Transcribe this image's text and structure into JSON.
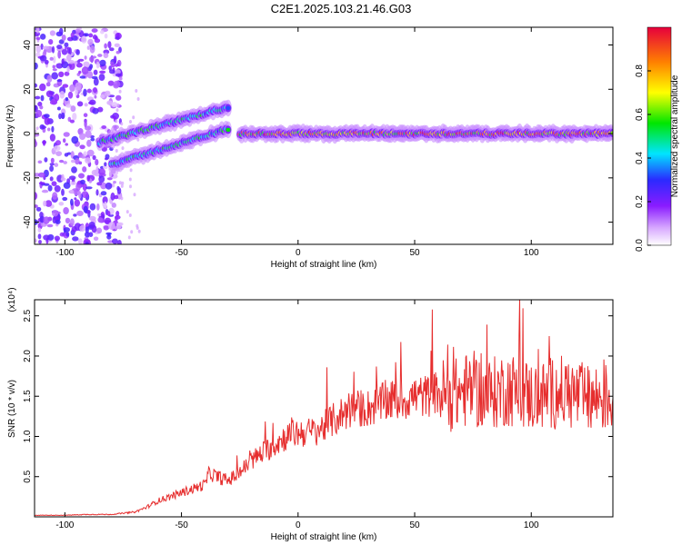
{
  "title": "C2E1.2025.103.21.46.G03",
  "colors": {
    "trace": "#e62e2e",
    "axis": "#000000"
  },
  "chart_data": [
    {
      "type": "heatmap",
      "xlabel": "Height of straight line (km)",
      "ylabel": "Frequency (Hz)",
      "xlim": [
        -113,
        135
      ],
      "ylim": [
        -50,
        48
      ],
      "xticks": [
        -100,
        -50,
        0,
        50,
        100
      ],
      "yticks": [
        -40,
        -20,
        0,
        20,
        40
      ],
      "colorbar": {
        "label": "Normalized spectral amplitude",
        "range": [
          0,
          1
        ],
        "ticks": [
          "0.0",
          "0.2",
          "0.4",
          "0.6",
          "0.8"
        ],
        "colors": [
          "#ffffff",
          "#8a1cff",
          "#2a2aff",
          "#00e5ff",
          "#00e600",
          "#ffff00",
          "#ff8000",
          "#e6003c"
        ]
      },
      "features": [
        {
          "name": "main-band",
          "x_start": -25,
          "x_end": 135,
          "freq": 0,
          "amplitude": 0.9
        },
        {
          "name": "upper-branch",
          "x_start": -85,
          "x_end": -30,
          "freq_start": -4,
          "freq_end": 12,
          "amplitude": 0.55
        },
        {
          "name": "lower-branch",
          "x_start": -80,
          "x_end": -30,
          "freq_start": -14,
          "freq_end": 2,
          "amplitude": 0.55
        },
        {
          "name": "noise-region",
          "x_start": -113,
          "x_end": -80,
          "amplitude": 0.15
        }
      ]
    },
    {
      "type": "line",
      "xlabel": "Height of straight line (km)",
      "ylabel": "SNR (10 * v/v)",
      "yscale_label": "(x10⁴)",
      "xlim": [
        -113,
        135
      ],
      "ylim": [
        0,
        2.7
      ],
      "xticks": [
        -100,
        -50,
        0,
        50,
        100
      ],
      "yticks": [
        "0.5",
        "1.0",
        "1.5",
        "2.0",
        "2.5"
      ],
      "series": [
        {
          "x": [
            -113,
            -100,
            -90,
            -80,
            -70,
            -65,
            -60,
            -55,
            -50,
            -45,
            -40,
            -38,
            -35,
            -30,
            -25,
            -20,
            -15,
            -10,
            -5,
            0,
            5,
            10,
            15,
            20,
            25,
            30,
            35,
            40,
            45,
            50,
            55,
            60,
            65,
            70,
            75,
            80,
            85,
            90,
            95,
            100,
            105,
            110,
            115,
            120,
            125,
            130,
            135
          ],
          "values": [
            0.02,
            0.02,
            0.03,
            0.03,
            0.06,
            0.12,
            0.2,
            0.25,
            0.3,
            0.35,
            0.4,
            0.55,
            0.5,
            0.45,
            0.55,
            0.7,
            0.8,
            0.9,
            1.0,
            1.05,
            1.05,
            1.1,
            1.2,
            1.3,
            1.35,
            1.35,
            1.4,
            1.45,
            1.45,
            1.5,
            1.5,
            1.55,
            1.5,
            1.55,
            1.6,
            1.5,
            1.55,
            1.6,
            1.55,
            1.5,
            1.5,
            1.55,
            1.55,
            1.5,
            1.45,
            1.5,
            1.45
          ]
        }
      ]
    }
  ]
}
